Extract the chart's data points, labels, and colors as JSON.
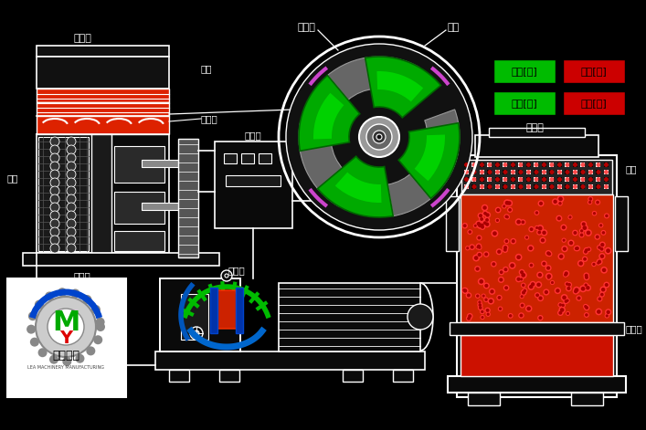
{
  "bg_color": "#000000",
  "white": "#ffffff",
  "red": "#dd2200",
  "bright_red": "#ff0000",
  "green": "#00aa00",
  "bright_green": "#00dd00",
  "orange_red": "#cc4400",
  "gray": "#888888",
  "light_gray": "#cccccc",
  "dark_gray": "#333333",
  "blue_dark": "#0033aa",
  "cyan_blue": "#0077cc",
  "labels": {
    "top_left_feed": "加料口",
    "sieve": "筛筒",
    "press_blade": "压料叶",
    "scraper": "碾刀",
    "outlet": "出料槽",
    "reducer": "减速机",
    "inverter": "变频器",
    "press_blade2": "压料叶",
    "scraper2": "碾刀",
    "feed_on": "加料[开]",
    "feed_off": "加料[关]",
    "granule_on": "制粒[开]",
    "granule_off": "制粒[关]",
    "feed_top_right": "加料口",
    "sieve_right": "筛筒",
    "outlet_right": "出料槽"
  },
  "logo_text": "乐马机械",
  "logo_sub": "LEA MACHINERY MANUFACTURING"
}
